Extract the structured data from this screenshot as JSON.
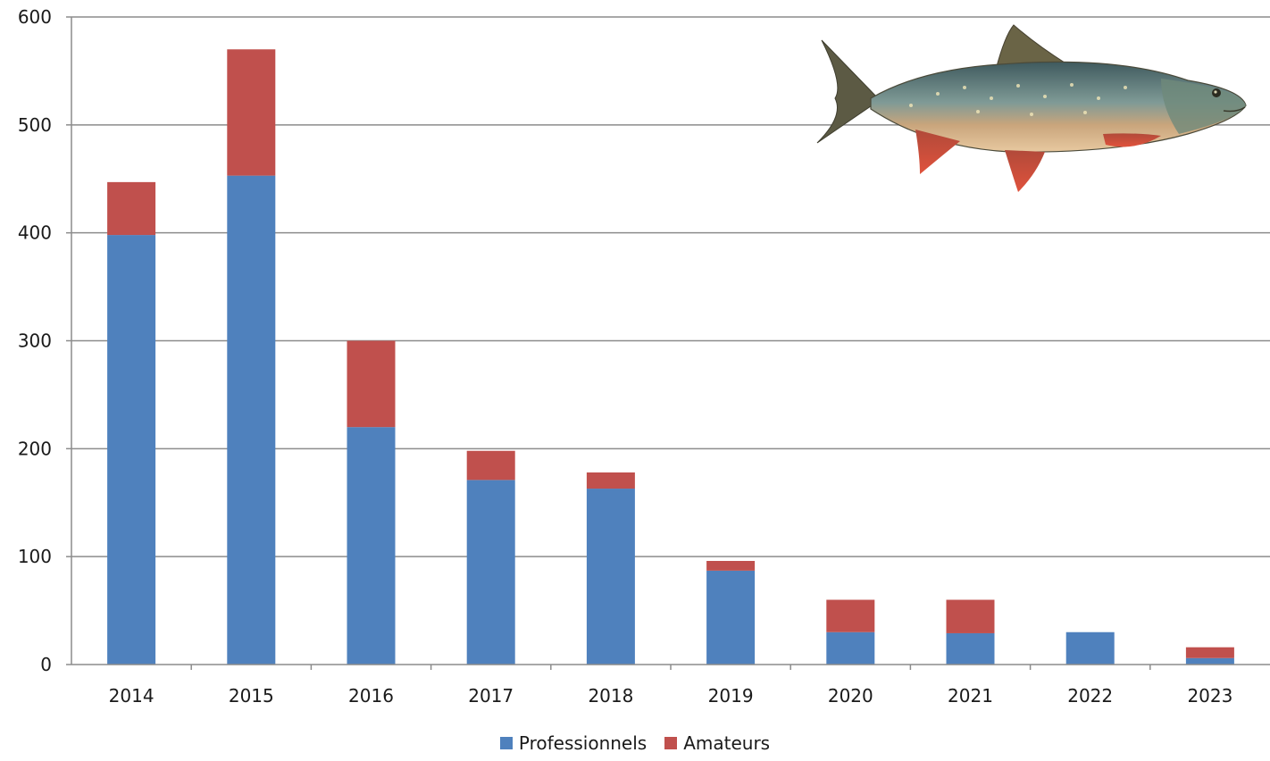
{
  "chart_data": {
    "type": "bar",
    "stacked": true,
    "title": "",
    "xlabel": "",
    "ylabel": "",
    "ylim": [
      0,
      600
    ],
    "yticks": [
      "0",
      "100",
      "200",
      "300",
      "400",
      "500",
      "600"
    ],
    "grid": true,
    "legend_position": "bottom",
    "categories": [
      "2014",
      "2015",
      "2016",
      "2017",
      "2018",
      "2019",
      "2020",
      "2021",
      "2022",
      "2023"
    ],
    "series": [
      {
        "name": "Professionnels",
        "color": "#4f81bd",
        "values": [
          398,
          453,
          220,
          171,
          163,
          87,
          30,
          29,
          30,
          6
        ]
      },
      {
        "name": "Amateurs",
        "color": "#c0504d",
        "values": [
          49,
          117,
          80,
          27,
          15,
          9,
          30,
          31,
          0,
          10
        ]
      }
    ]
  },
  "illustration": {
    "icon": "arctic-char-fish-icon"
  }
}
